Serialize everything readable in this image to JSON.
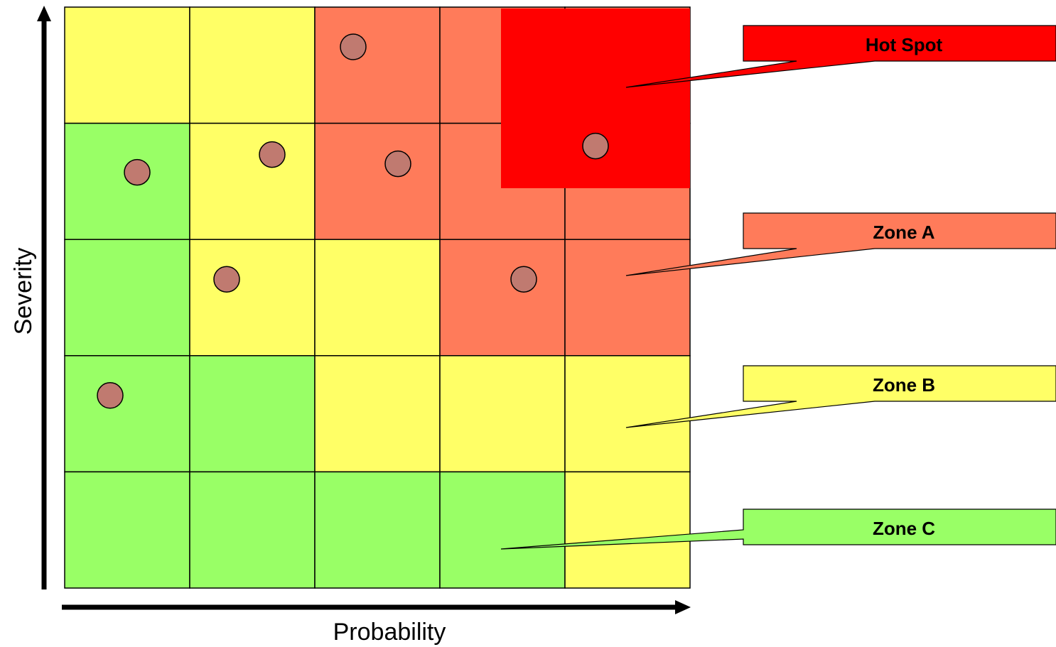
{
  "axes": {
    "x_label": "Probability",
    "y_label": "Severity"
  },
  "colors": {
    "green": "#99FF66",
    "yellow": "#FFFF66",
    "orange": "#FF7B5A",
    "red": "#FF0000",
    "dot": "#C07A70",
    "grid_line": "#000000"
  },
  "grid": {
    "rows": 5,
    "cols": 5,
    "cells": [
      [
        "yellow",
        "yellow",
        "orange",
        "orange",
        "orange"
      ],
      [
        "green",
        "yellow",
        "orange",
        "orange",
        "orange"
      ],
      [
        "green",
        "yellow",
        "yellow",
        "orange",
        "orange"
      ],
      [
        "green",
        "green",
        "yellow",
        "yellow",
        "yellow"
      ],
      [
        "green",
        "green",
        "green",
        "green",
        "yellow"
      ]
    ]
  },
  "hot_spot_region": {
    "color": "red"
  },
  "callouts": [
    {
      "id": "hot-spot",
      "label": "Hot Spot",
      "color": "red"
    },
    {
      "id": "zone-a",
      "label": "Zone A",
      "color": "orange"
    },
    {
      "id": "zone-b",
      "label": "Zone B",
      "color": "yellow"
    },
    {
      "id": "zone-c",
      "label": "Zone C",
      "color": "green"
    }
  ],
  "risk_points": [
    {
      "row": 1,
      "col": 3
    },
    {
      "row": 2,
      "col": 1
    },
    {
      "row": 2,
      "col": 2
    },
    {
      "row": 2,
      "col": 3
    },
    {
      "row": 2,
      "col": 5
    },
    {
      "row": 3,
      "col": 2
    },
    {
      "row": 3,
      "col": 4
    },
    {
      "row": 4,
      "col": 1
    }
  ]
}
